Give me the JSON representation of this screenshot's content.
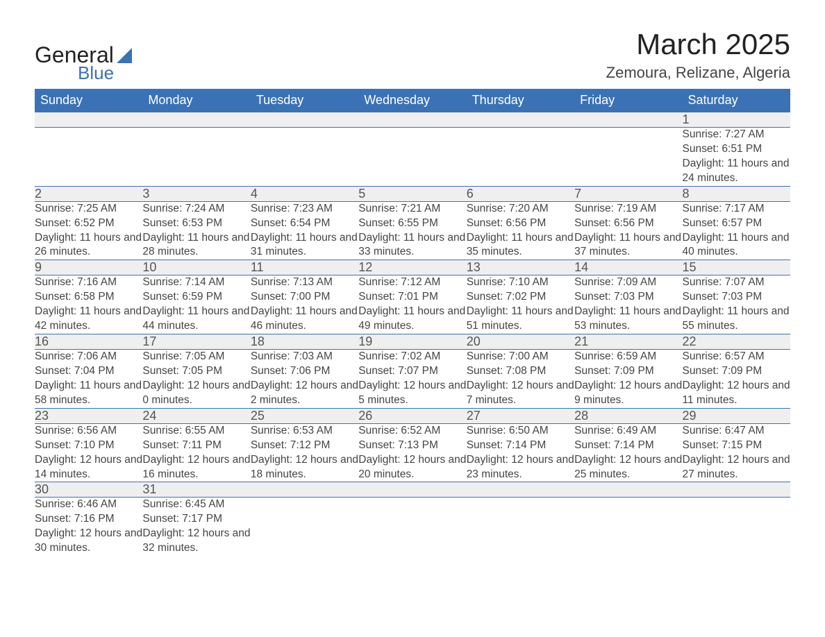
{
  "logo": {
    "general": "General",
    "blue": "Blue"
  },
  "title": "March 2025",
  "location": "Zemoura, Relizane, Algeria",
  "colors": {
    "header_bg": "#3a72b5",
    "header_text": "#ffffff",
    "daynum_bg": "#efefef",
    "text": "#444444",
    "page_bg": "#ffffff"
  },
  "day_headers": [
    "Sunday",
    "Monday",
    "Tuesday",
    "Wednesday",
    "Thursday",
    "Friday",
    "Saturday"
  ],
  "weeks": [
    {
      "nums": [
        "",
        "",
        "",
        "",
        "",
        "",
        "1"
      ],
      "details": [
        "",
        "",
        "",
        "",
        "",
        "",
        "Sunrise: 7:27 AM\nSunset: 6:51 PM\nDaylight: 11 hours and 24 minutes."
      ]
    },
    {
      "nums": [
        "2",
        "3",
        "4",
        "5",
        "6",
        "7",
        "8"
      ],
      "details": [
        "Sunrise: 7:25 AM\nSunset: 6:52 PM\nDaylight: 11 hours and 26 minutes.",
        "Sunrise: 7:24 AM\nSunset: 6:53 PM\nDaylight: 11 hours and 28 minutes.",
        "Sunrise: 7:23 AM\nSunset: 6:54 PM\nDaylight: 11 hours and 31 minutes.",
        "Sunrise: 7:21 AM\nSunset: 6:55 PM\nDaylight: 11 hours and 33 minutes.",
        "Sunrise: 7:20 AM\nSunset: 6:56 PM\nDaylight: 11 hours and 35 minutes.",
        "Sunrise: 7:19 AM\nSunset: 6:56 PM\nDaylight: 11 hours and 37 minutes.",
        "Sunrise: 7:17 AM\nSunset: 6:57 PM\nDaylight: 11 hours and 40 minutes."
      ]
    },
    {
      "nums": [
        "9",
        "10",
        "11",
        "12",
        "13",
        "14",
        "15"
      ],
      "details": [
        "Sunrise: 7:16 AM\nSunset: 6:58 PM\nDaylight: 11 hours and 42 minutes.",
        "Sunrise: 7:14 AM\nSunset: 6:59 PM\nDaylight: 11 hours and 44 minutes.",
        "Sunrise: 7:13 AM\nSunset: 7:00 PM\nDaylight: 11 hours and 46 minutes.",
        "Sunrise: 7:12 AM\nSunset: 7:01 PM\nDaylight: 11 hours and 49 minutes.",
        "Sunrise: 7:10 AM\nSunset: 7:02 PM\nDaylight: 11 hours and 51 minutes.",
        "Sunrise: 7:09 AM\nSunset: 7:03 PM\nDaylight: 11 hours and 53 minutes.",
        "Sunrise: 7:07 AM\nSunset: 7:03 PM\nDaylight: 11 hours and 55 minutes."
      ]
    },
    {
      "nums": [
        "16",
        "17",
        "18",
        "19",
        "20",
        "21",
        "22"
      ],
      "details": [
        "Sunrise: 7:06 AM\nSunset: 7:04 PM\nDaylight: 11 hours and 58 minutes.",
        "Sunrise: 7:05 AM\nSunset: 7:05 PM\nDaylight: 12 hours and 0 minutes.",
        "Sunrise: 7:03 AM\nSunset: 7:06 PM\nDaylight: 12 hours and 2 minutes.",
        "Sunrise: 7:02 AM\nSunset: 7:07 PM\nDaylight: 12 hours and 5 minutes.",
        "Sunrise: 7:00 AM\nSunset: 7:08 PM\nDaylight: 12 hours and 7 minutes.",
        "Sunrise: 6:59 AM\nSunset: 7:09 PM\nDaylight: 12 hours and 9 minutes.",
        "Sunrise: 6:57 AM\nSunset: 7:09 PM\nDaylight: 12 hours and 11 minutes."
      ]
    },
    {
      "nums": [
        "23",
        "24",
        "25",
        "26",
        "27",
        "28",
        "29"
      ],
      "details": [
        "Sunrise: 6:56 AM\nSunset: 7:10 PM\nDaylight: 12 hours and 14 minutes.",
        "Sunrise: 6:55 AM\nSunset: 7:11 PM\nDaylight: 12 hours and 16 minutes.",
        "Sunrise: 6:53 AM\nSunset: 7:12 PM\nDaylight: 12 hours and 18 minutes.",
        "Sunrise: 6:52 AM\nSunset: 7:13 PM\nDaylight: 12 hours and 20 minutes.",
        "Sunrise: 6:50 AM\nSunset: 7:14 PM\nDaylight: 12 hours and 23 minutes.",
        "Sunrise: 6:49 AM\nSunset: 7:14 PM\nDaylight: 12 hours and 25 minutes.",
        "Sunrise: 6:47 AM\nSunset: 7:15 PM\nDaylight: 12 hours and 27 minutes."
      ]
    },
    {
      "nums": [
        "30",
        "31",
        "",
        "",
        "",
        "",
        ""
      ],
      "details": [
        "Sunrise: 6:46 AM\nSunset: 7:16 PM\nDaylight: 12 hours and 30 minutes.",
        "Sunrise: 6:45 AM\nSunset: 7:17 PM\nDaylight: 12 hours and 32 minutes.",
        "",
        "",
        "",
        "",
        ""
      ]
    }
  ]
}
